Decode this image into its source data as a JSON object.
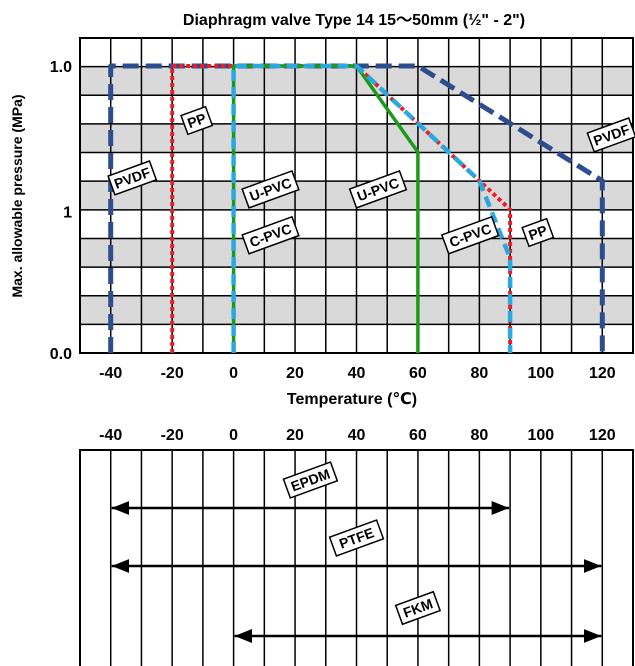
{
  "chart_data": [
    {
      "type": "line",
      "title": "Diaphragm valve Type 14  15～50mm (½\" - 2\")",
      "xlabel": "Temperature (℃)",
      "ylabel": "Max. allowable pressure (MPa)",
      "xlim": [
        -50,
        130
      ],
      "ylim": [
        0.0,
        1.0
      ],
      "x_ticks": [
        "-40",
        "-20",
        "0",
        "20",
        "40",
        "60",
        "80",
        "100",
        "120"
      ],
      "y_tick_labels": [
        "0.0",
        "1",
        "1.0"
      ],
      "grid": true,
      "series": [
        {
          "name": "PVDF",
          "color": "#2e4d8e",
          "dash": "long-dash",
          "points": [
            [
              -40,
              0.0
            ],
            [
              -40,
              1.0
            ],
            [
              60,
              1.0
            ],
            [
              120,
              0.6
            ],
            [
              120,
              0.0
            ]
          ]
        },
        {
          "name": "PP",
          "color": "#ee1c24",
          "dash": "dot",
          "points": [
            [
              -20,
              0.0
            ],
            [
              -20,
              1.0
            ],
            [
              40,
              1.0
            ],
            [
              90,
              0.5
            ],
            [
              90,
              0.0
            ]
          ]
        },
        {
          "name": "U-PVC",
          "color": "#1a9b1a",
          "dash": "solid",
          "points": [
            [
              0,
              0.0
            ],
            [
              0,
              1.0
            ],
            [
              40,
              1.0
            ],
            [
              60,
              0.7
            ],
            [
              60,
              0.0
            ]
          ]
        },
        {
          "name": "C-PVC",
          "color": "#2aa8e0",
          "dash": "dash",
          "points": [
            [
              0,
              0.0
            ],
            [
              0,
              1.0
            ],
            [
              40,
              1.0
            ],
            [
              80,
              0.6
            ],
            [
              90,
              0.33
            ],
            [
              90,
              0.0
            ]
          ]
        }
      ],
      "annotations": [
        {
          "text": "PVDF",
          "x": -33,
          "y": 0.61
        },
        {
          "text": "PP",
          "x": -12,
          "y": 0.81
        },
        {
          "text": "U-PVC",
          "x": 12,
          "y": 0.57
        },
        {
          "text": "C-PVC",
          "x": 12,
          "y": 0.41
        },
        {
          "text": "U-PVC",
          "x": 47,
          "y": 0.57
        },
        {
          "text": "C-PVC",
          "x": 77,
          "y": 0.41
        },
        {
          "text": "PP",
          "x": 99,
          "y": 0.42
        },
        {
          "text": "PVDF",
          "x": 123,
          "y": 0.76
        }
      ]
    },
    {
      "type": "range",
      "x_ticks": [
        "-40",
        "-20",
        "0",
        "20",
        "40",
        "60",
        "80",
        "100",
        "120"
      ],
      "xlim": [
        -50,
        130
      ],
      "ranges": [
        {
          "name": "EPDM",
          "from": -40,
          "to": 90
        },
        {
          "name": "PTFE",
          "from": -40,
          "to": 120
        },
        {
          "name": "FKM",
          "from": 0,
          "to": 120
        }
      ]
    }
  ]
}
